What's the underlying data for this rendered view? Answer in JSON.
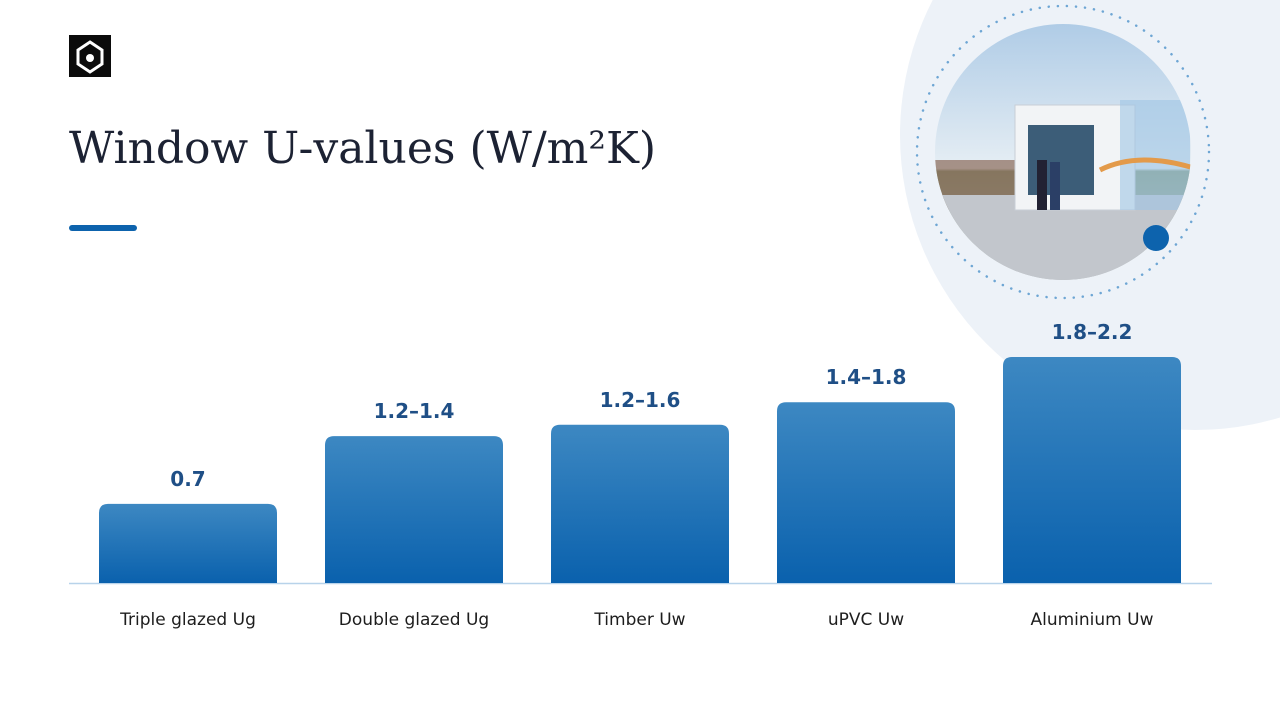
{
  "chart_data": {
    "type": "range-bar",
    "title": "Window U-values (W/m²K)",
    "categories": [
      "Triple glazed Ug",
      "Double glazed Ug",
      "Timber Uw",
      "uPVC Uw",
      "Aluminium Uw"
    ],
    "low": [
      0.7,
      1.2,
      1.2,
      1.4,
      1.8
    ],
    "high": [
      0.7,
      1.4,
      1.6,
      1.8,
      2.2
    ],
    "value_labels": [
      "0.7",
      "1.2–1.4",
      "1.2–1.6",
      "1.4–1.8",
      "1.8–2.2"
    ],
    "color": "#0d63ad"
  }
}
